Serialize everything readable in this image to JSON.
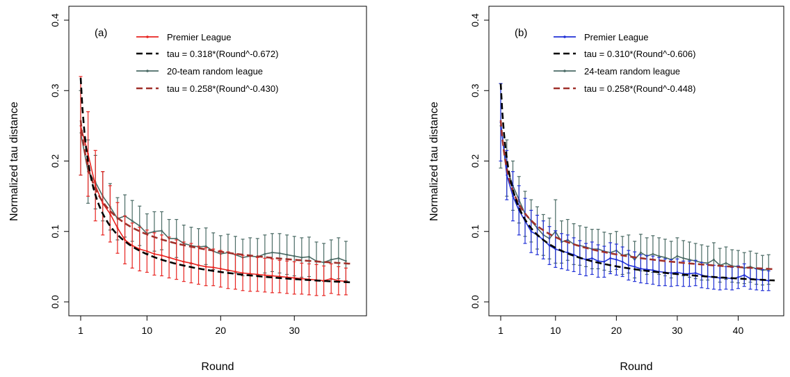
{
  "chart_data": [
    {
      "type": "line",
      "panel_label": "(a)",
      "xlabel": "Round",
      "ylabel": "Normalized tau distance",
      "xlim": [
        1,
        38
      ],
      "ylim": [
        0,
        0.4
      ],
      "xticks": [
        1,
        10,
        20,
        30
      ],
      "yticks": [
        0.0,
        0.1,
        0.2,
        0.3,
        0.4
      ],
      "ytick_labels": [
        "0.0",
        "0.1",
        "0.2",
        "0.3",
        "0.4"
      ],
      "legend_position": "top-right",
      "grid": false,
      "series": [
        {
          "name": "Premier League",
          "kind": "data",
          "color": "#e8231f",
          "x": [
            1,
            2,
            3,
            4,
            5,
            6,
            7,
            8,
            9,
            10,
            11,
            12,
            13,
            14,
            15,
            16,
            17,
            18,
            19,
            20,
            21,
            22,
            23,
            24,
            25,
            26,
            27,
            28,
            29,
            30,
            31,
            32,
            33,
            34,
            35,
            36,
            37
          ],
          "y": [
            0.25,
            0.21,
            0.165,
            0.14,
            0.125,
            0.105,
            0.088,
            0.08,
            0.075,
            0.072,
            0.068,
            0.066,
            0.063,
            0.06,
            0.057,
            0.055,
            0.052,
            0.05,
            0.049,
            0.047,
            0.045,
            0.043,
            0.041,
            0.04,
            0.039,
            0.038,
            0.037,
            0.036,
            0.035,
            0.034,
            0.033,
            0.032,
            0.031,
            0.03,
            0.033,
            0.03,
            0.029
          ],
          "err": [
            0.07,
            0.06,
            0.05,
            0.045,
            0.04,
            0.036,
            0.034,
            0.032,
            0.031,
            0.03,
            0.03,
            0.029,
            0.029,
            0.028,
            0.028,
            0.028,
            0.027,
            0.027,
            0.026,
            0.026,
            0.026,
            0.025,
            0.025,
            0.025,
            0.024,
            0.024,
            0.024,
            0.023,
            0.023,
            0.023,
            0.022,
            0.022,
            0.022,
            0.021,
            0.021,
            0.02,
            0.019
          ]
        },
        {
          "name": "tau = 0.318*(Round^-0.672)",
          "kind": "fit",
          "color": "#000000",
          "a": 0.318,
          "b": -0.672
        },
        {
          "name": "20-team random league",
          "kind": "data",
          "color": "#4a6a64",
          "x": [
            1,
            2,
            3,
            4,
            5,
            6,
            7,
            8,
            9,
            10,
            11,
            12,
            13,
            14,
            15,
            16,
            17,
            18,
            19,
            20,
            21,
            22,
            23,
            24,
            25,
            26,
            27,
            28,
            29,
            30,
            31,
            32,
            33,
            34,
            35,
            36,
            37
          ],
          "y": [
            0.24,
            0.185,
            0.17,
            0.15,
            0.135,
            0.118,
            0.122,
            0.115,
            0.108,
            0.097,
            0.1,
            0.101,
            0.09,
            0.09,
            0.083,
            0.08,
            0.078,
            0.079,
            0.072,
            0.068,
            0.07,
            0.067,
            0.063,
            0.065,
            0.064,
            0.068,
            0.07,
            0.069,
            0.067,
            0.065,
            0.063,
            0.064,
            0.058,
            0.056,
            0.06,
            0.062,
            0.058
          ],
          "err": [
            0.06,
            0.045,
            0.038,
            0.035,
            0.033,
            0.03,
            0.03,
            0.029,
            0.028,
            0.028,
            0.028,
            0.027,
            0.027,
            0.027,
            0.026,
            0.026,
            0.026,
            0.026,
            0.026,
            0.026,
            0.026,
            0.026,
            0.026,
            0.026,
            0.026,
            0.027,
            0.027,
            0.028,
            0.028,
            0.028,
            0.028,
            0.028,
            0.027,
            0.027,
            0.028,
            0.029,
            0.028
          ]
        },
        {
          "name": "tau = 0.258*(Round^-0.430)",
          "kind": "fit",
          "color": "#a0302a",
          "a": 0.258,
          "b": -0.43
        }
      ]
    },
    {
      "type": "line",
      "panel_label": "(b)",
      "xlabel": "Round",
      "ylabel": "Normalized tau distance",
      "xlim": [
        1,
        46
      ],
      "ylim": [
        0,
        0.4
      ],
      "xticks": [
        1,
        10,
        20,
        30,
        40
      ],
      "yticks": [
        0.0,
        0.1,
        0.2,
        0.3,
        0.4
      ],
      "ytick_labels": [
        "0.0",
        "0.1",
        "0.2",
        "0.3",
        "0.4"
      ],
      "legend_position": "top-right",
      "grid": false,
      "series": [
        {
          "name": "Premier League",
          "kind": "data",
          "color": "#1f2fd6",
          "x": [
            1,
            2,
            3,
            4,
            5,
            6,
            7,
            8,
            9,
            10,
            11,
            12,
            13,
            14,
            15,
            16,
            17,
            18,
            19,
            20,
            21,
            22,
            23,
            24,
            25,
            26,
            27,
            28,
            29,
            30,
            31,
            32,
            33,
            34,
            35,
            36,
            37,
            38,
            39,
            40,
            41,
            42,
            43,
            44,
            45
          ],
          "y": [
            0.255,
            0.18,
            0.15,
            0.13,
            0.115,
            0.1,
            0.095,
            0.088,
            0.08,
            0.075,
            0.072,
            0.07,
            0.067,
            0.063,
            0.06,
            0.062,
            0.058,
            0.057,
            0.062,
            0.06,
            0.057,
            0.052,
            0.05,
            0.047,
            0.046,
            0.045,
            0.043,
            0.042,
            0.041,
            0.042,
            0.04,
            0.04,
            0.041,
            0.038,
            0.036,
            0.035,
            0.034,
            0.034,
            0.033,
            0.035,
            0.038,
            0.033,
            0.032,
            0.031,
            0.03
          ],
          "err": [
            0.055,
            0.035,
            0.035,
            0.035,
            0.032,
            0.03,
            0.028,
            0.027,
            0.027,
            0.026,
            0.025,
            0.025,
            0.024,
            0.024,
            0.023,
            0.023,
            0.023,
            0.022,
            0.022,
            0.022,
            0.021,
            0.021,
            0.021,
            0.02,
            0.02,
            0.02,
            0.02,
            0.019,
            0.019,
            0.019,
            0.018,
            0.018,
            0.018,
            0.018,
            0.017,
            0.017,
            0.017,
            0.016,
            0.016,
            0.016,
            0.016,
            0.015,
            0.015,
            0.015,
            0.014
          ]
        },
        {
          "name": "tau = 0.310*(Round^-0.606)",
          "kind": "fit",
          "color": "#000000",
          "a": 0.31,
          "b": -0.606
        },
        {
          "name": "24-team random league",
          "kind": "data",
          "color": "#4a6a64",
          "x": [
            1,
            2,
            3,
            4,
            5,
            6,
            7,
            8,
            9,
            10,
            11,
            12,
            13,
            14,
            15,
            16,
            17,
            18,
            19,
            20,
            21,
            22,
            23,
            24,
            25,
            26,
            27,
            28,
            29,
            30,
            31,
            32,
            33,
            34,
            35,
            36,
            37,
            38,
            39,
            40,
            41,
            42,
            43,
            44,
            45
          ],
          "y": [
            0.25,
            0.19,
            0.165,
            0.145,
            0.125,
            0.115,
            0.105,
            0.095,
            0.09,
            0.1,
            0.085,
            0.088,
            0.082,
            0.08,
            0.078,
            0.075,
            0.075,
            0.072,
            0.07,
            0.073,
            0.066,
            0.068,
            0.06,
            0.07,
            0.065,
            0.068,
            0.065,
            0.063,
            0.06,
            0.065,
            0.062,
            0.06,
            0.058,
            0.056,
            0.055,
            0.06,
            0.052,
            0.055,
            0.051,
            0.05,
            0.048,
            0.05,
            0.047,
            0.045,
            0.046
          ],
          "err": [
            0.06,
            0.04,
            0.035,
            0.033,
            0.032,
            0.03,
            0.03,
            0.029,
            0.029,
            0.045,
            0.03,
            0.029,
            0.029,
            0.028,
            0.028,
            0.028,
            0.028,
            0.027,
            0.027,
            0.027,
            0.027,
            0.027,
            0.026,
            0.026,
            0.026,
            0.026,
            0.026,
            0.026,
            0.026,
            0.026,
            0.025,
            0.025,
            0.025,
            0.025,
            0.024,
            0.024,
            0.024,
            0.023,
            0.023,
            0.023,
            0.022,
            0.022,
            0.022,
            0.021,
            0.021
          ]
        },
        {
          "name": "tau = 0.258*(Round^-0.448)",
          "kind": "fit",
          "color": "#a0302a",
          "a": 0.258,
          "b": -0.448
        }
      ]
    }
  ]
}
